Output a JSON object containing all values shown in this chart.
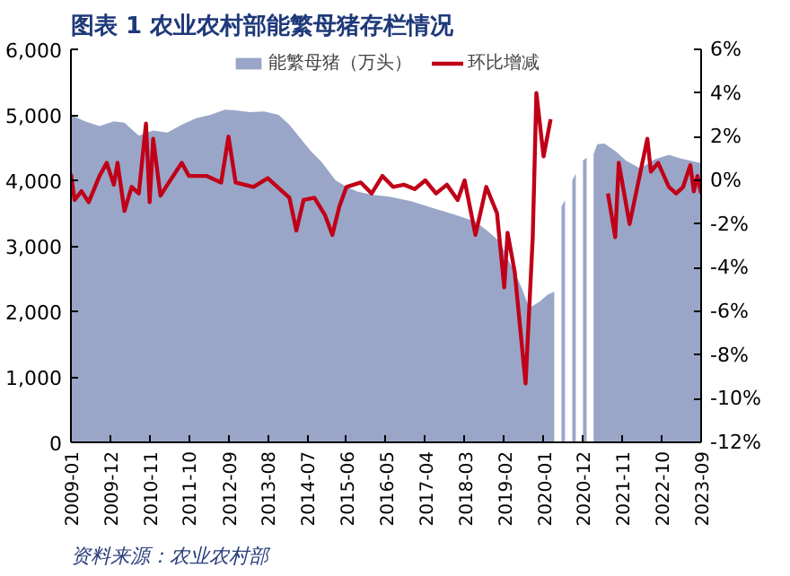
{
  "chart_data": {
    "type": "area",
    "title": "图表 1  农业农村部能繁母猪存栏情况",
    "annotations": [
      "资料来源：农业农村部"
    ],
    "xlim": [
      "2009-01",
      "2023-09"
    ],
    "xticks": [
      "2009-01",
      "2009-12",
      "2010-11",
      "2011-10",
      "2012-09",
      "2013-08",
      "2014-07",
      "2015-06",
      "2016-05",
      "2017-04",
      "2018-03",
      "2019-02",
      "2020-01",
      "2020-12",
      "2021-11",
      "2022-10",
      "2023-09"
    ],
    "ylim": [
      0,
      6000
    ],
    "yticks": [
      0,
      {
        "value": 1000,
        "label": "1,000"
      },
      {
        "value": 2000,
        "label": "2,000"
      },
      {
        "value": 3000,
        "label": "3,000"
      },
      {
        "value": 4000,
        "label": "4,000"
      },
      {
        "value": 5000,
        "label": "5,000"
      },
      {
        "value": 6000,
        "label": "6,000"
      }
    ],
    "y2lim": [
      -12,
      6
    ],
    "y2ticks": [
      {
        "value": -12,
        "label": "-12%"
      },
      {
        "value": -10,
        "label": "-10%"
      },
      {
        "value": -8,
        "label": "-8%"
      },
      {
        "value": -6,
        "label": "-6%"
      },
      {
        "value": -4,
        "label": "-4%"
      },
      {
        "value": -2,
        "label": "-2%"
      },
      {
        "value": 0,
        "label": "0%"
      },
      {
        "value": 2,
        "label": "2%"
      },
      {
        "value": 4,
        "label": "4%"
      },
      {
        "value": 6,
        "label": "6%"
      }
    ],
    "grid": false,
    "legend": "top",
    "series": [
      {
        "name": "能繁母猪（万头）",
        "color": "#9aa6c8",
        "x": [
          "2009-01",
          "2009-05",
          "2009-09",
          "2010-01",
          "2010-04",
          "2010-08",
          "2010-12",
          "2011-04",
          "2011-08",
          "2011-12",
          "2012-04",
          "2012-08",
          "2012-11",
          "2013-03",
          "2013-07",
          "2013-11",
          "2014-02",
          "2014-05",
          "2014-08",
          "2014-11",
          "2015-03",
          "2015-06",
          "2015-09",
          "2016-01",
          "2016-06",
          "2016-12",
          "2017-06",
          "2017-12",
          "2018-06",
          "2018-10",
          "2019-01",
          "2019-03",
          "2019-05",
          "2019-07",
          "2019-09",
          "2019-12",
          "2020-02",
          "2020-04",
          "2020-05",
          "2020-06",
          "2020-07",
          "2020-08",
          "2020-09",
          "2020-10",
          "2020-11",
          "2020-12",
          "2021-01",
          "2021-02",
          "2021-03",
          "2021-04",
          "2021-06",
          "2021-09",
          "2021-12",
          "2022-04",
          "2022-08",
          "2022-12",
          "2023-03",
          "2023-06",
          "2023-09"
        ],
        "values": [
          5000,
          4900,
          4830,
          4900,
          4880,
          4680,
          4760,
          4730,
          4850,
          4950,
          5000,
          5080,
          5070,
          5040,
          5050,
          5000,
          4850,
          4650,
          4450,
          4280,
          4000,
          3900,
          3830,
          3780,
          3750,
          3680,
          3580,
          3480,
          3370,
          3200,
          3050,
          2800,
          2600,
          2350,
          2050,
          2150,
          2250,
          2300,
          null,
          3600,
          3700,
          null,
          4000,
          4100,
          null,
          4300,
          4350,
          null,
          4400,
          4550,
          4560,
          4450,
          4300,
          4180,
          4320,
          4390,
          4340,
          4300,
          4260
        ]
      },
      {
        "name": "环比增减",
        "type": "line",
        "axis": "y2",
        "color": "#c00018",
        "x": [
          "2009-01",
          "2009-02",
          "2009-04",
          "2009-06",
          "2009-09",
          "2009-11",
          "2010-01",
          "2010-02",
          "2010-04",
          "2010-06",
          "2010-08",
          "2010-10",
          "2010-11",
          "2010-12",
          "2011-02",
          "2011-04",
          "2011-08",
          "2011-10",
          "2012-03",
          "2012-07",
          "2012-09",
          "2012-11",
          "2013-04",
          "2013-08",
          "2013-12",
          "2014-02",
          "2014-04",
          "2014-06",
          "2014-09",
          "2014-12",
          "2015-02",
          "2015-04",
          "2015-06",
          "2015-10",
          "2016-01",
          "2016-04",
          "2016-07",
          "2016-10",
          "2017-01",
          "2017-04",
          "2017-07",
          "2017-10",
          "2018-01",
          "2018-03",
          "2018-06",
          "2018-09",
          "2018-12",
          "2019-02",
          "2019-03",
          "2019-05",
          "2019-08",
          "2019-10",
          "2019-11",
          "2020-01",
          "2020-03",
          "2020-04",
          "2021-07",
          "2021-09",
          "2021-10",
          "2022-01",
          "2022-06",
          "2022-07",
          "2022-09",
          "2022-12",
          "2023-02",
          "2023-04",
          "2023-06",
          "2023-07",
          "2023-08",
          "2023-09"
        ],
        "values": [
          0.3,
          -0.9,
          -0.5,
          -1.0,
          0.2,
          0.8,
          -0.2,
          0.8,
          -1.4,
          -0.3,
          -0.6,
          2.6,
          -1.0,
          1.9,
          -0.7,
          -0.2,
          0.8,
          0.2,
          0.2,
          -0.1,
          2.0,
          -0.1,
          -0.3,
          0.1,
          -0.5,
          -0.8,
          -2.3,
          -0.9,
          -0.8,
          -1.6,
          -2.5,
          -1.2,
          -0.3,
          -0.1,
          -0.6,
          0.2,
          -0.3,
          -0.2,
          -0.4,
          0.0,
          -0.6,
          -0.2,
          -0.9,
          0.0,
          -2.5,
          -0.3,
          -1.5,
          -4.9,
          -2.4,
          -4.2,
          -9.3,
          -2.6,
          4.0,
          1.1,
          2.8,
          null,
          -0.6,
          -2.6,
          0.8,
          -2.0,
          1.9,
          0.4,
          0.8,
          -0.3,
          -0.6,
          -0.3,
          0.7,
          -0.5,
          0.2,
          -0.6
        ]
      }
    ]
  }
}
